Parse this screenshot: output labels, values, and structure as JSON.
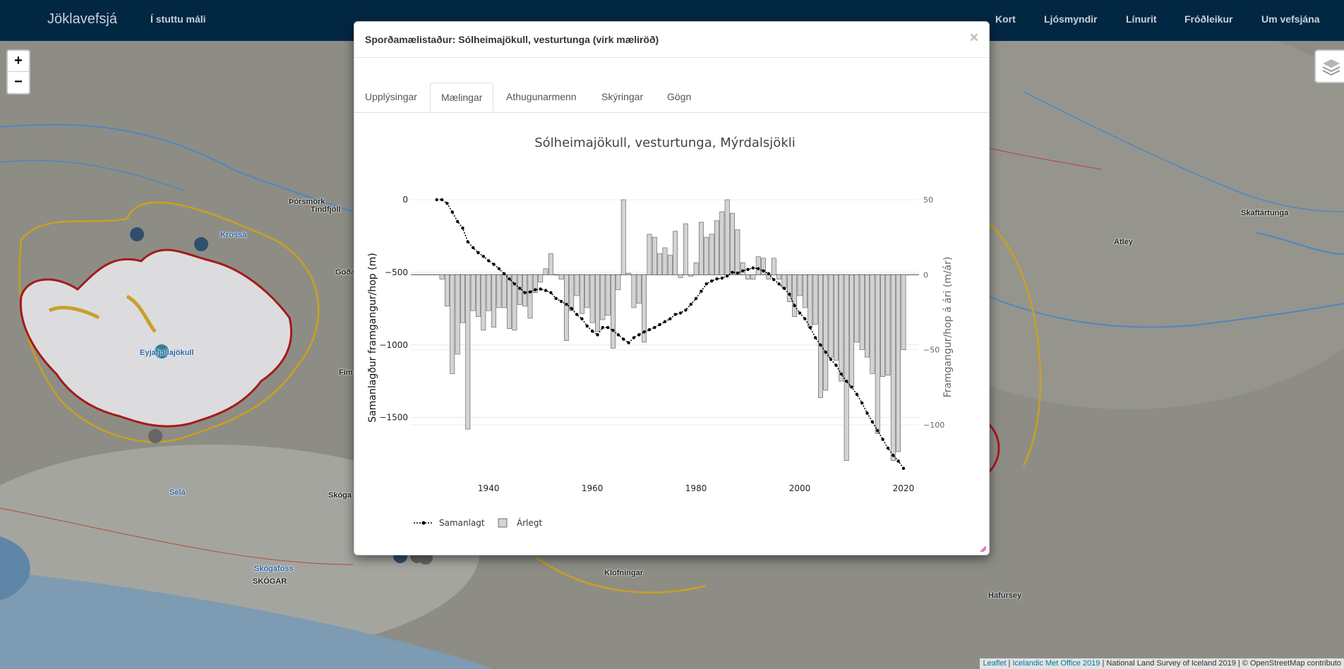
{
  "navbar": {
    "brand": "Jöklavefsjá",
    "short": "Í stuttu máli",
    "links": [
      "Kort",
      "Ljósmyndir",
      "Línurit",
      "Fróðleikur",
      "Um vefsjána"
    ]
  },
  "zoom": {
    "in": "+",
    "out": "−"
  },
  "map_labels": [
    "Þórsmörk",
    "Tindfjöll",
    "Krossá",
    "Goða",
    "Eyjafjallajökull",
    "Fim",
    "Selá",
    "Skóga",
    "Skógafoss",
    "SKÓGAR",
    "Klofningar",
    "Atley",
    "Skaftártunga",
    "Hafursey"
  ],
  "attribution": {
    "leaflet": "Leaflet",
    "sep1": " | ",
    "imo": "Icelandic Met Office 2019",
    "rest": " | National Land Survey of Iceland 2019 | © OpenStreetMap contributo"
  },
  "modal": {
    "title": "Sporðamælistaður: Sólheimajökull, vesturtunga (virk mæliröð)",
    "close": "×",
    "tabs": [
      "Upplýsingar",
      "Mælingar",
      "Athugunarmenn",
      "Skýringar",
      "Gögn"
    ],
    "active_tab": 1
  },
  "chart_data": {
    "type": "bar",
    "title": "Sólheimajökull, vesturtunga, Mýrdalsjökli",
    "xlabel": "",
    "ylabel_left": "Samanlagður framgangur/hop (m)",
    "ylabel_right": "Framgangur/hop á ári (m/ár)",
    "x_ticks": [
      1940,
      1960,
      1980,
      2000,
      2020
    ],
    "y_left_ticks": [
      0,
      -500,
      -1000,
      -1500
    ],
    "y_left_tick_labels": [
      "0",
      "−500",
      "−1000",
      "−1500"
    ],
    "y_right_ticks": [
      50,
      0,
      -50,
      -100
    ],
    "y_right_tick_labels": [
      "50",
      "0",
      "−50",
      "−100"
    ],
    "xlim": [
      1925,
      2023
    ],
    "ylim_left": [
      -1900,
      0
    ],
    "ylim_right": [
      -134,
      50
    ],
    "legend": [
      "Samanlagt",
      "Árlegt"
    ],
    "legend_position": "bottom-left",
    "colors": {
      "bar_fill": "#d3d3d3",
      "bar_stroke": "#555555",
      "line": "#000000",
      "axis_text": "#666666"
    },
    "annual_years": [
      1931,
      1932,
      1933,
      1934,
      1935,
      1936,
      1937,
      1938,
      1939,
      1940,
      1941,
      1942,
      1943,
      1944,
      1945,
      1946,
      1947,
      1948,
      1949,
      1950,
      1951,
      1952,
      1953,
      1954,
      1955,
      1956,
      1957,
      1958,
      1959,
      1960,
      1961,
      1962,
      1963,
      1964,
      1965,
      1966,
      1967,
      1968,
      1969,
      1970,
      1971,
      1972,
      1973,
      1974,
      1975,
      1976,
      1977,
      1978,
      1979,
      1980,
      1981,
      1982,
      1983,
      1984,
      1985,
      1986,
      1987,
      1988,
      1989,
      1990,
      1991,
      1992,
      1993,
      1994,
      1995,
      1996,
      1997,
      1998,
      1999,
      2000,
      2001,
      2002,
      2003,
      2004,
      2005,
      2006,
      2007,
      2008,
      2009,
      2010,
      2011,
      2012,
      2013,
      2014,
      2015,
      2016,
      2017,
      2018,
      2019,
      2020
    ],
    "annual_values": [
      -3,
      -21,
      -66,
      -53,
      -32,
      -103,
      -24,
      -28,
      -37,
      -24,
      -35,
      -22,
      -22,
      -36,
      -37,
      -20,
      -21,
      -29,
      -12,
      -5,
      4,
      14,
      0,
      -3,
      -44,
      -24,
      -14,
      -26,
      -22,
      -32,
      -38,
      -30,
      -27,
      -49,
      -10,
      50,
      1,
      -22,
      -19,
      -45,
      27,
      25,
      14,
      18,
      13,
      29,
      -2,
      34,
      -1,
      8,
      35,
      25,
      27,
      36,
      42,
      50,
      41,
      30,
      8,
      -3,
      -3,
      12,
      11,
      -3,
      11,
      -3,
      -9,
      -18,
      -28,
      -14,
      -22,
      -35,
      -33,
      -82,
      -77,
      -55,
      -57,
      -71,
      -124,
      -75,
      -45,
      -50,
      -55,
      -66,
      -106,
      -68,
      -67,
      -124,
      -118,
      -50
    ],
    "cumulative_years": [
      1930,
      1931,
      1932,
      1933,
      1934,
      1935,
      1936,
      1937,
      1938,
      1939,
      1940,
      1941,
      1942,
      1943,
      1944,
      1945,
      1946,
      1947,
      1948,
      1949,
      1950,
      1951,
      1952,
      1953,
      1954,
      1955,
      1956,
      1957,
      1958,
      1959,
      1960,
      1961,
      1962,
      1963,
      1964,
      1965,
      1966,
      1967,
      1968,
      1969,
      1970,
      1971,
      1972,
      1973,
      1974,
      1975,
      1976,
      1977,
      1978,
      1979,
      1980,
      1981,
      1982,
      1983,
      1984,
      1985,
      1986,
      1987,
      1988,
      1989,
      1990,
      1991,
      1992,
      1993,
      1994,
      1995,
      1996,
      1997,
      1998,
      1999,
      2000,
      2001,
      2002,
      2003,
      2004,
      2005,
      2006,
      2007,
      2008,
      2009,
      2010,
      2011,
      2012,
      2013,
      2014,
      2015,
      2016,
      2017,
      2018,
      2019,
      2020
    ],
    "cumulative_values": [
      0,
      0,
      -25,
      -85,
      -150,
      -195,
      -290,
      -330,
      -365,
      -390,
      -420,
      -445,
      -475,
      -510,
      -545,
      -580,
      -610,
      -640,
      -635,
      -620,
      -615,
      -625,
      -640,
      -680,
      -700,
      -720,
      -750,
      -790,
      -820,
      -870,
      -905,
      -930,
      -880,
      -880,
      -900,
      -930,
      -960,
      -985,
      -950,
      -930,
      -910,
      -895,
      -880,
      -860,
      -840,
      -820,
      -790,
      -780,
      -760,
      -720,
      -680,
      -630,
      -580,
      -560,
      -545,
      -540,
      -525,
      -500,
      -505,
      -490,
      -480,
      -470,
      -475,
      -490,
      -510,
      -550,
      -580,
      -610,
      -650,
      -730,
      -780,
      -820,
      -880,
      -950,
      -1000,
      -1050,
      -1100,
      -1140,
      -1200,
      -1250,
      -1290,
      -1340,
      -1400,
      -1470,
      -1530,
      -1590,
      -1650,
      -1710,
      -1760,
      -1800,
      -1850
    ]
  }
}
